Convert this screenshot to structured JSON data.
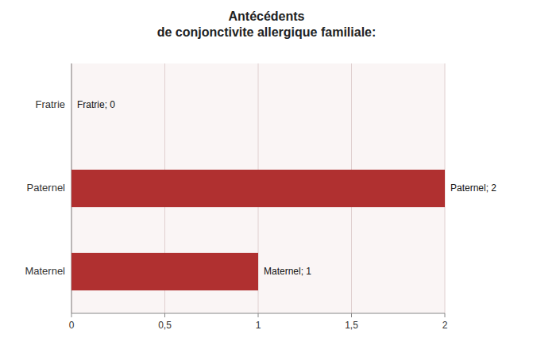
{
  "chart_data": {
    "type": "bar",
    "orientation": "horizontal",
    "title": "Antécédents\nde conjonctivite allergique familiale:",
    "categories": [
      "Fratrie",
      "Paternel",
      "Maternel"
    ],
    "values": [
      0,
      2,
      1
    ],
    "value_labels": [
      "Fratrie; 0",
      "Paternel; 2",
      "Maternel; 1"
    ],
    "data_labels": true,
    "color": "#b03030",
    "xlim": [
      0,
      2
    ],
    "xticks": [
      0,
      {
        "value": 0.5,
        "label": "0,5"
      },
      1,
      {
        "value": 1.5,
        "label": "1,5"
      },
      2
    ],
    "grid": true
  }
}
